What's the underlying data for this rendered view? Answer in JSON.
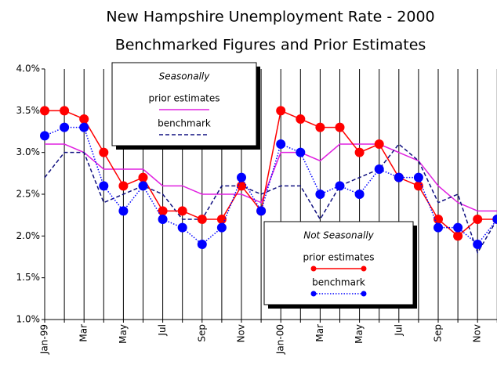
{
  "chart_data": {
    "type": "line",
    "title": "New Hampshire Unemployment Rate - 2000",
    "subtitle": "Benchmarked Figures and Prior Estimates",
    "categories": [
      "Jan-99",
      null,
      "Mar",
      null,
      "May",
      null,
      "Jul",
      null,
      "Sep",
      null,
      "Nov",
      null,
      "Jan-00",
      null,
      "Mar",
      null,
      "May",
      null,
      "Jul",
      null,
      "Sep",
      null,
      "Nov",
      null
    ],
    "ylim": [
      1.0,
      4.0
    ],
    "yticks": [
      {
        "value": 1.0,
        "label": "1.0%"
      },
      {
        "value": 1.5,
        "label": "1.5%"
      },
      {
        "value": 2.0,
        "label": "2.0%"
      },
      {
        "value": 2.5,
        "label": "2.5%"
      },
      {
        "value": 3.0,
        "label": "3.0%"
      },
      {
        "value": 3.5,
        "label": "3.5%"
      },
      {
        "value": 4.0,
        "label": "4.0%"
      }
    ],
    "grid": "vertical",
    "groups": [
      {
        "title": "Seasonally",
        "series": [
          {
            "name": "prior estimates",
            "color": "#e020e0",
            "dash": "solid",
            "marker": "none",
            "values": [
              3.1,
              3.1,
              3.0,
              2.8,
              2.8,
              2.8,
              2.6,
              2.6,
              2.5,
              2.5,
              2.5,
              2.4,
              3.0,
              3.0,
              2.9,
              3.1,
              3.1,
              3.1,
              3.0,
              2.9,
              2.6,
              2.4,
              2.3,
              2.3
            ]
          },
          {
            "name": "benchmark",
            "color": "#101080",
            "dash": "dashed",
            "marker": "none",
            "values": [
              2.7,
              3.0,
              3.0,
              2.4,
              2.5,
              2.6,
              2.5,
              2.2,
              2.2,
              2.6,
              2.6,
              2.5,
              2.6,
              2.6,
              2.2,
              2.6,
              2.7,
              2.8,
              3.1,
              2.9,
              2.4,
              2.5,
              1.8,
              2.2
            ]
          }
        ]
      },
      {
        "title": "Not Seasonally",
        "series": [
          {
            "name": "prior estimates",
            "color": "#ff0000",
            "dash": "solid",
            "marker": "circle",
            "values": [
              3.5,
              3.5,
              3.4,
              3.0,
              2.6,
              2.7,
              2.3,
              2.3,
              2.2,
              2.2,
              2.6,
              2.3,
              3.5,
              3.4,
              3.3,
              3.3,
              3.0,
              3.1,
              2.7,
              2.6,
              2.2,
              2.0,
              2.2,
              2.2
            ]
          },
          {
            "name": "benchmark",
            "color": "#0000ff",
            "dash": "dotted",
            "marker": "circle",
            "values": [
              3.2,
              3.3,
              3.3,
              2.6,
              2.3,
              2.6,
              2.2,
              2.1,
              1.9,
              2.1,
              2.7,
              2.3,
              3.1,
              3.0,
              2.5,
              2.6,
              2.5,
              2.8,
              2.7,
              2.7,
              2.1,
              2.1,
              1.9,
              2.2
            ]
          }
        ]
      }
    ]
  }
}
